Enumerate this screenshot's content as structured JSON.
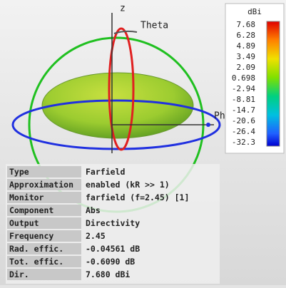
{
  "plot": {
    "axis_labels": {
      "z": "z",
      "theta": "Theta",
      "phi": "Phi"
    }
  },
  "colorbar": {
    "unit": "dBi",
    "labels": [
      "7.68",
      "6.28",
      "4.89",
      "3.49",
      "2.09",
      "0.698",
      "-2.94",
      "-8.81",
      "-14.7",
      "-20.6",
      "-26.4",
      "-32.3"
    ]
  },
  "table": {
    "rows": [
      [
        "Type",
        "Farfield"
      ],
      [
        "Approximation",
        "enabled (kR >> 1)"
      ],
      [
        "Monitor",
        "farfield (f=2.45) [1]"
      ],
      [
        "Component",
        "Abs"
      ],
      [
        "Output",
        "Directivity"
      ],
      [
        "Frequency",
        "2.45"
      ],
      [
        "Rad. effic.",
        "-0.04561 dB"
      ],
      [
        "Tot. effic.",
        "-0.6090 dB"
      ],
      [
        "Dir.",
        "7.680 dBi"
      ]
    ]
  }
}
